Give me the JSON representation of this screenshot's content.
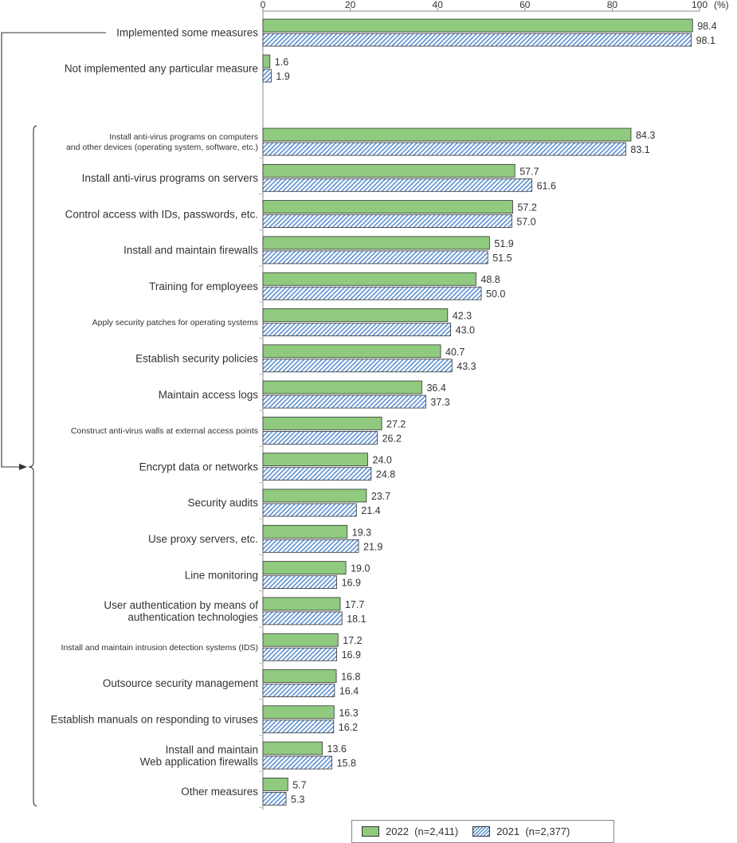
{
  "chart_data": {
    "type": "bar",
    "orientation": "horizontal",
    "unit_label": "(%)",
    "xlim": [
      0,
      100
    ],
    "x_ticks": [
      "0",
      "20",
      "40",
      "60",
      "80",
      "100"
    ],
    "grid": false,
    "legend_position": "bottom-right",
    "colors": {
      "2022": "#8fca7f",
      "2021": "#5b8fd1",
      "outline": "#333333"
    },
    "series": [
      {
        "name": "2022  (n=2,411)",
        "key": "2022"
      },
      {
        "name": "2021  (n=2,377)",
        "key": "2021"
      }
    ],
    "categories": [
      {
        "label": [
          "Implemented some measures"
        ],
        "v2022": 98.4,
        "v2021": 98.1,
        "group": "top"
      },
      {
        "label": [
          "Not implemented any particular measure"
        ],
        "v2022": 1.6,
        "v2021": 1.9,
        "group": "top"
      },
      {
        "label": [
          "Install anti-virus programs on computers",
          "and other devices (operating system, software, etc.)"
        ],
        "v2022": 84.3,
        "v2021": 83.1,
        "small": true
      },
      {
        "label": [
          "Install anti-virus programs on servers"
        ],
        "v2022": 57.7,
        "v2021": 61.6
      },
      {
        "label": [
          "Control access with IDs, passwords, etc."
        ],
        "v2022": 57.2,
        "v2021": 57.0
      },
      {
        "label": [
          "Install and maintain firewalls"
        ],
        "v2022": 51.9,
        "v2021": 51.5
      },
      {
        "label": [
          "Training for employees"
        ],
        "v2022": 48.8,
        "v2021": 50.0
      },
      {
        "label": [
          "Apply security patches for operating systems"
        ],
        "v2022": 42.3,
        "v2021": 43.0,
        "small": true
      },
      {
        "label": [
          "Establish security policies"
        ],
        "v2022": 40.7,
        "v2021": 43.3
      },
      {
        "label": [
          "Maintain access logs"
        ],
        "v2022": 36.4,
        "v2021": 37.3
      },
      {
        "label": [
          "Construct anti-virus walls at external access points"
        ],
        "v2022": 27.2,
        "v2021": 26.2,
        "small": true
      },
      {
        "label": [
          "Encrypt data or networks"
        ],
        "v2022": 24.0,
        "v2021": 24.8
      },
      {
        "label": [
          "Security audits"
        ],
        "v2022": 23.7,
        "v2021": 21.4
      },
      {
        "label": [
          "Use proxy servers, etc."
        ],
        "v2022": 19.3,
        "v2021": 21.9
      },
      {
        "label": [
          "Line monitoring"
        ],
        "v2022": 19.0,
        "v2021": 16.9
      },
      {
        "label": [
          "User authentication by means of",
          "authentication technologies"
        ],
        "v2022": 17.7,
        "v2021": 18.1
      },
      {
        "label": [
          "Install and maintain intrusion detection systems (IDS)"
        ],
        "v2022": 17.2,
        "v2021": 16.9,
        "small": true
      },
      {
        "label": [
          "Outsource security management"
        ],
        "v2022": 16.8,
        "v2021": 16.4
      },
      {
        "label": [
          "Establish manuals on responding to viruses"
        ],
        "v2022": 16.3,
        "v2021": 16.2
      },
      {
        "label": [
          "Install and maintain",
          "Web application firewalls"
        ],
        "v2022": 13.6,
        "v2021": 15.8
      },
      {
        "label": [
          "Other measures"
        ],
        "v2022": 5.7,
        "v2021": 5.3
      }
    ]
  }
}
